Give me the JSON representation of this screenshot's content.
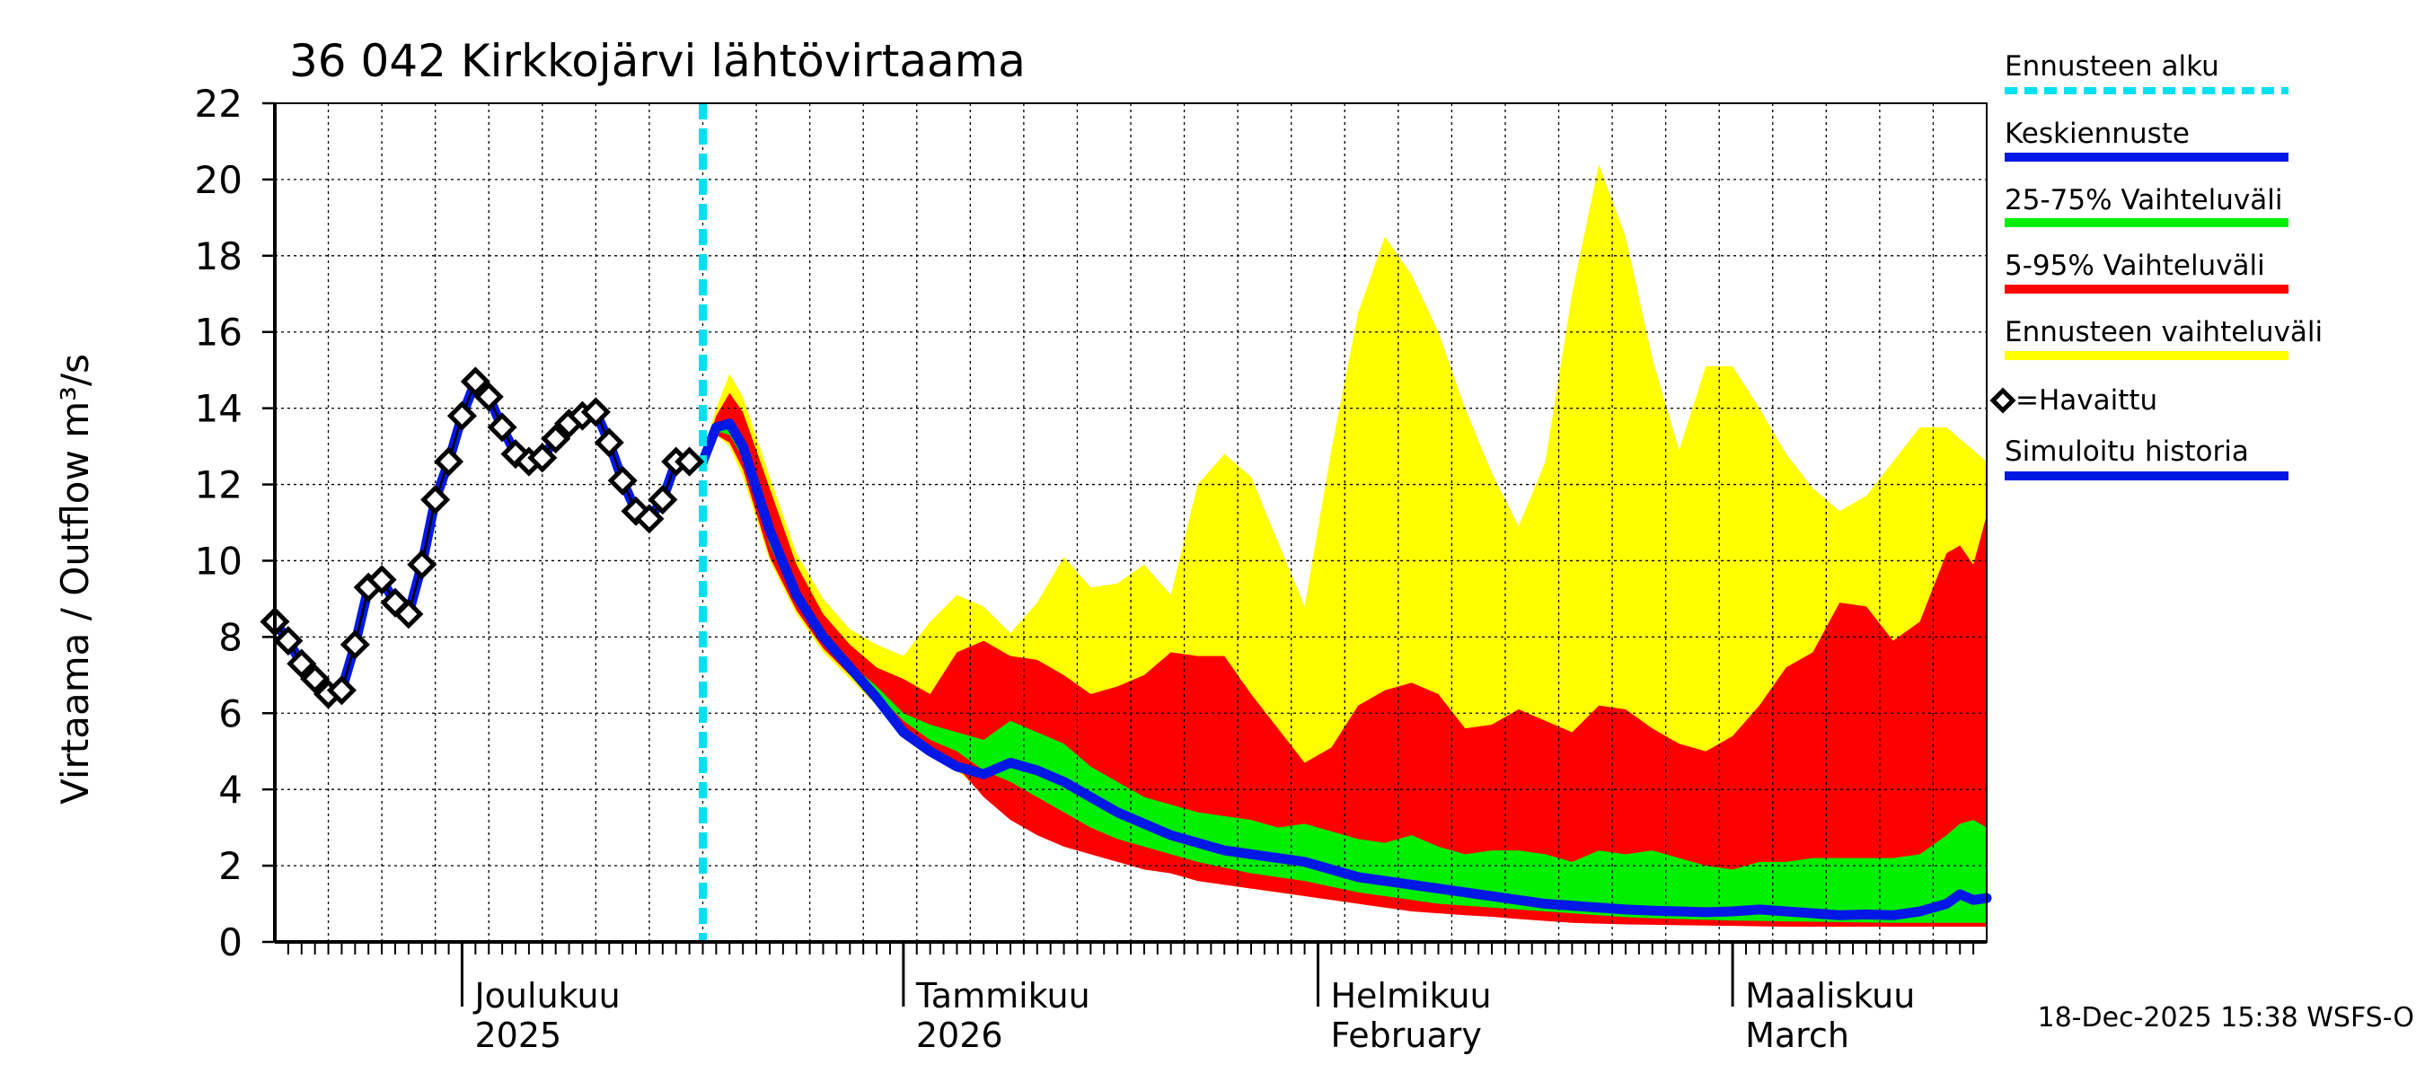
{
  "chart_data": {
    "type": "area",
    "title": "36 042 Kirkkojärvi lähtövirtaama",
    "ylabel": "Virtaama / Outflow    m³/s",
    "ylim": [
      0,
      22
    ],
    "yticks": [
      "0",
      "2",
      "4",
      "6",
      "8",
      "10",
      "12",
      "14",
      "16",
      "18",
      "20",
      "22"
    ],
    "xlim": [
      0,
      128
    ],
    "grid": true,
    "month_labels": [
      {
        "day": 14,
        "line1": "Joulukuu",
        "line2": "2025"
      },
      {
        "day": 47,
        "line1": "Tammikuu",
        "line2": "2026"
      },
      {
        "day": 78,
        "line1": "Helmikuu",
        "line2": "February"
      },
      {
        "day": 109,
        "line1": "Maaliskuu",
        "line2": "March"
      }
    ],
    "month_boundaries": [
      14,
      47,
      78,
      109
    ],
    "forecast_start_day": 32,
    "observed": {
      "name": "=Havaittu",
      "x": [
        0,
        1,
        2,
        3,
        4,
        5,
        6,
        7,
        8,
        9,
        10,
        11,
        12,
        13,
        14,
        15,
        16,
        17,
        18,
        19,
        20,
        21,
        22,
        23,
        24,
        25,
        26,
        27,
        28,
        29,
        30,
        31
      ],
      "y": [
        8.4,
        7.9,
        7.3,
        6.9,
        6.5,
        6.6,
        7.8,
        9.3,
        9.5,
        8.9,
        8.6,
        9.9,
        11.6,
        12.6,
        13.8,
        14.7,
        14.3,
        13.5,
        12.8,
        12.6,
        12.7,
        13.2,
        13.6,
        13.8,
        13.9,
        13.1,
        12.1,
        11.3,
        11.1,
        11.6,
        12.6,
        12.6
      ]
    },
    "forecast_x": [
      32,
      33,
      34,
      35,
      37,
      39,
      41,
      43,
      45,
      47,
      49,
      51,
      53,
      55,
      57,
      59,
      61,
      63,
      65,
      67,
      69,
      71,
      73,
      75,
      77,
      79,
      81,
      83,
      85,
      87,
      89,
      91,
      93,
      95,
      97,
      99,
      101,
      103,
      105,
      107,
      109,
      111,
      113,
      115,
      117,
      119,
      121,
      123,
      125,
      126,
      127,
      128
    ],
    "series": [
      {
        "name": "Ennusteen vaihteluväli (min)",
        "values": [
          12.4,
          13.3,
          13.0,
          12.2,
          10.0,
          8.6,
          7.6,
          6.9,
          6.2,
          5.5,
          5.0,
          4.5,
          3.9,
          3.4,
          3.0,
          2.7,
          2.4,
          2.2,
          2.0,
          1.8,
          1.6,
          1.5,
          1.4,
          1.3,
          1.2,
          1.1,
          1.0,
          0.9,
          0.85,
          0.8,
          0.75,
          0.7,
          0.68,
          0.64,
          0.6,
          0.58,
          0.55,
          0.52,
          0.5,
          0.48,
          0.46,
          0.45,
          0.44,
          0.43,
          0.42,
          0.41,
          0.4,
          0.4,
          0.4,
          0.4,
          0.4,
          0.4
        ]
      },
      {
        "name": "Ennusteen vaihteluväli (max)",
        "values": [
          12.8,
          14.0,
          14.9,
          14.3,
          12.2,
          10.2,
          9.0,
          8.2,
          7.8,
          7.5,
          8.4,
          9.1,
          8.8,
          8.1,
          8.9,
          10.1,
          9.3,
          9.4,
          9.9,
          9.1,
          12.0,
          12.8,
          12.2,
          10.5,
          8.8,
          12.9,
          16.5,
          18.5,
          17.5,
          16.0,
          14.0,
          12.3,
          10.9,
          12.6,
          17.0,
          20.4,
          18.5,
          15.3,
          12.9,
          15.1,
          15.1,
          14.0,
          12.8,
          11.9,
          11.3,
          11.7,
          12.6,
          13.5,
          13.5,
          13.2,
          12.9,
          12.6
        ]
      },
      {
        "name": "5-95% Vaihteluväli (low)",
        "values": [
          12.4,
          13.3,
          13.1,
          12.4,
          10.1,
          8.7,
          7.7,
          7.0,
          6.4,
          5.6,
          5.1,
          4.6,
          3.8,
          3.2,
          2.8,
          2.5,
          2.3,
          2.1,
          1.9,
          1.8,
          1.6,
          1.5,
          1.4,
          1.3,
          1.2,
          1.1,
          1.0,
          0.9,
          0.8,
          0.75,
          0.7,
          0.66,
          0.6,
          0.55,
          0.5,
          0.48,
          0.46,
          0.45,
          0.44,
          0.43,
          0.42,
          0.41,
          0.4,
          0.4,
          0.4,
          0.4,
          0.4,
          0.4,
          0.4,
          0.4,
          0.4,
          0.4
        ]
      },
      {
        "name": "5-95% Vaihteluväli (high)",
        "values": [
          12.7,
          13.8,
          14.4,
          13.9,
          11.9,
          9.9,
          8.6,
          7.8,
          7.2,
          6.9,
          6.5,
          7.6,
          7.9,
          7.5,
          7.4,
          7.0,
          6.5,
          6.7,
          7.0,
          7.6,
          7.5,
          7.5,
          6.5,
          5.6,
          4.7,
          5.1,
          6.2,
          6.6,
          6.8,
          6.5,
          5.6,
          5.7,
          6.1,
          5.8,
          5.5,
          6.2,
          6.1,
          5.6,
          5.2,
          5.0,
          5.4,
          6.2,
          7.2,
          7.6,
          8.9,
          8.8,
          7.9,
          8.4,
          10.2,
          10.4,
          9.9,
          11.2
        ]
      },
      {
        "name": "25-75% Vaihteluväli (low)",
        "values": [
          12.5,
          13.4,
          13.3,
          12.7,
          10.4,
          8.9,
          7.9,
          7.1,
          6.5,
          5.8,
          5.3,
          5.0,
          4.5,
          4.2,
          3.8,
          3.4,
          3.0,
          2.7,
          2.5,
          2.3,
          2.1,
          1.95,
          1.8,
          1.7,
          1.6,
          1.45,
          1.3,
          1.2,
          1.1,
          1.0,
          0.95,
          0.9,
          0.85,
          0.8,
          0.75,
          0.7,
          0.65,
          0.62,
          0.6,
          0.58,
          0.56,
          0.55,
          0.54,
          0.53,
          0.52,
          0.51,
          0.5,
          0.5,
          0.5,
          0.5,
          0.5,
          0.5
        ]
      },
      {
        "name": "25-75% Vaihteluväli (high)",
        "values": [
          12.6,
          13.6,
          13.7,
          13.1,
          10.9,
          9.3,
          8.2,
          7.3,
          6.7,
          6.0,
          5.7,
          5.5,
          5.3,
          5.8,
          5.5,
          5.2,
          4.6,
          4.2,
          3.8,
          3.6,
          3.4,
          3.3,
          3.2,
          3.0,
          3.1,
          2.9,
          2.7,
          2.6,
          2.8,
          2.5,
          2.3,
          2.4,
          2.4,
          2.3,
          2.1,
          2.4,
          2.3,
          2.4,
          2.2,
          2.0,
          1.9,
          2.1,
          2.1,
          2.2,
          2.2,
          2.2,
          2.2,
          2.3,
          2.8,
          3.1,
          3.2,
          3.0
        ]
      },
      {
        "name": "Keskiennuste",
        "values": [
          12.6,
          13.5,
          13.6,
          13.0,
          10.8,
          9.1,
          8.0,
          7.2,
          6.4,
          5.5,
          5.0,
          4.6,
          4.4,
          4.7,
          4.5,
          4.2,
          3.8,
          3.4,
          3.1,
          2.8,
          2.6,
          2.4,
          2.3,
          2.2,
          2.1,
          1.9,
          1.7,
          1.6,
          1.5,
          1.4,
          1.3,
          1.2,
          1.1,
          1.0,
          0.95,
          0.9,
          0.85,
          0.82,
          0.8,
          0.78,
          0.8,
          0.85,
          0.8,
          0.75,
          0.7,
          0.72,
          0.7,
          0.8,
          1.0,
          1.25,
          1.1,
          1.15
        ]
      }
    ],
    "legend": [
      {
        "label": "Ennusteen alku",
        "color": "#00e0f0",
        "style": "dashed"
      },
      {
        "label": "Keskiennuste",
        "color": "#0018e6",
        "style": "line"
      },
      {
        "label": "25-75% Vaihteluväli",
        "color": "#00ee00",
        "style": "line"
      },
      {
        "label": "5-95% Vaihteluväli",
        "color": "#ff0000",
        "style": "line"
      },
      {
        "label": "Ennusteen vaihteluväli",
        "color": "#ffff00",
        "style": "line"
      },
      {
        "label": "=Havaittu",
        "color": "#000000",
        "style": "marker"
      },
      {
        "label": "Simuloitu historia",
        "color": "#0018e6",
        "style": "line"
      }
    ],
    "legend_position": "right",
    "colors": {
      "range_full": "#ffff00",
      "range_5_95": "#ff0000",
      "range_25_75": "#00ee00",
      "median": "#0018e6",
      "forecast_start": "#00e0f0",
      "observed": "#000000",
      "grid": "#000000"
    },
    "footer": "18-Dec-2025 15:38 WSFS-O"
  }
}
